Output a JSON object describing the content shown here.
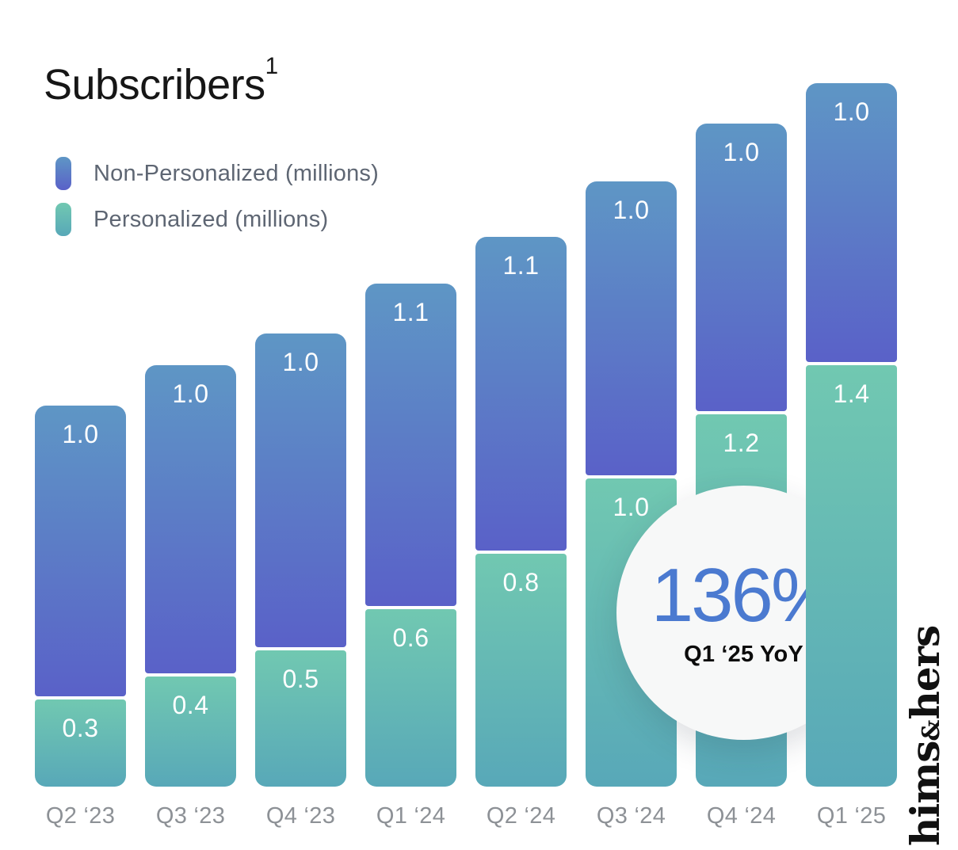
{
  "title": {
    "text": "Subscribers",
    "superscript": "1"
  },
  "legend": {
    "items": [
      {
        "label": "Non-Personalized (millions)"
      },
      {
        "label": "Personalized (millions)"
      }
    ]
  },
  "chart_data": {
    "type": "bar",
    "stacked": true,
    "title": "Subscribers",
    "unit": "millions",
    "categories": [
      "Q2 ‘23",
      "Q3 ‘23",
      "Q4 ‘23",
      "Q1 ‘24",
      "Q2 ‘24",
      "Q3 ‘24",
      "Q4 ‘24",
      "Q1 ‘25"
    ],
    "series": [
      {
        "name": "Non-Personalized (millions)",
        "values": [
          1.0,
          1.0,
          1.0,
          1.1,
          1.1,
          1.0,
          1.0,
          1.0
        ],
        "values_unrounded_est": [
          1.0,
          1.06,
          1.08,
          1.11,
          1.08,
          1.01,
          0.99,
          0.96
        ],
        "gradient_top": "#5e96c5",
        "gradient_bottom": "#5a61c8"
      },
      {
        "name": "Personalized (millions)",
        "values": [
          0.3,
          0.4,
          0.5,
          0.6,
          0.8,
          1.0,
          1.2,
          1.4
        ],
        "values_unrounded_est": [
          0.3,
          0.38,
          0.47,
          0.61,
          0.8,
          1.06,
          1.28,
          1.45
        ],
        "gradient_top": "#71c8b1",
        "gradient_bottom": "#58a8b8"
      }
    ],
    "value_labels_shown": true,
    "value_label_color": "#ffffff",
    "gridlines": false,
    "y_axis_shown": false,
    "legend_position": "top-left",
    "axis_label_color": "#8d9196"
  },
  "badge": {
    "value": "136%",
    "caption": "Q1 ‘25 YoY",
    "value_color": "#4b7ad0",
    "background": "#f7f8f8"
  },
  "logo": {
    "word1": "hims",
    "amp": "&",
    "word2": "hers"
  }
}
